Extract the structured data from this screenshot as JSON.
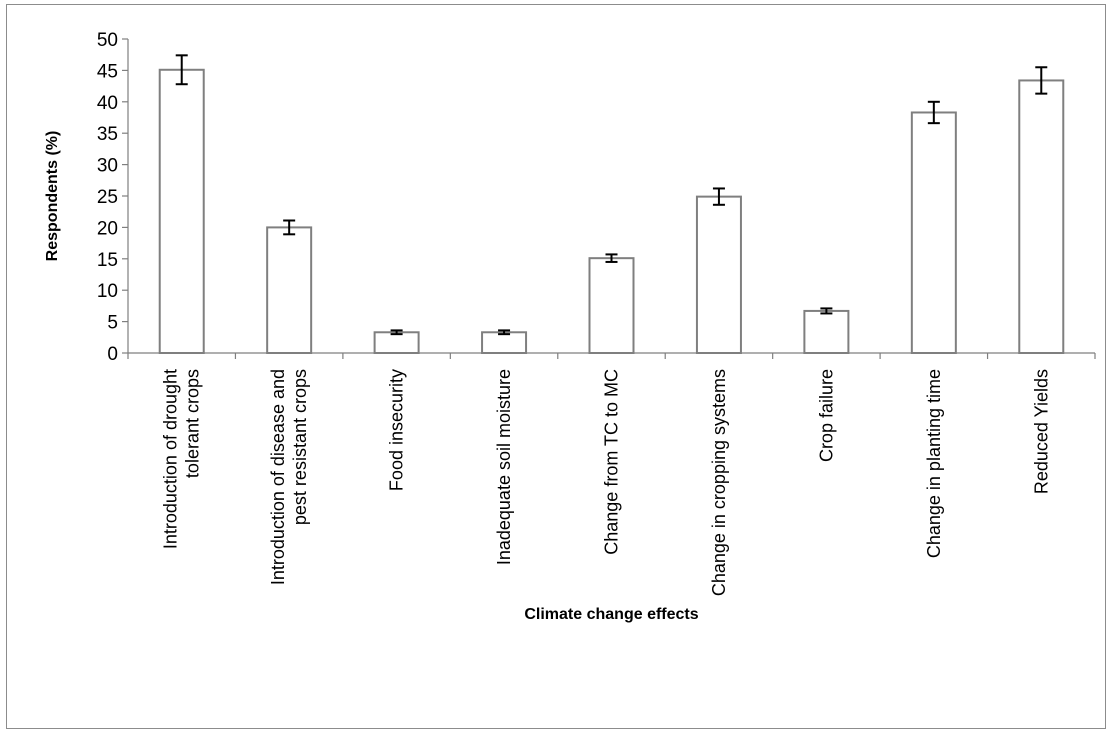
{
  "chart_data": {
    "type": "bar",
    "title": "",
    "xlabel": "Climate change effects",
    "ylabel": "Respondents (%)",
    "ylim": [
      0,
      50
    ],
    "yticks": [
      0,
      5,
      10,
      15,
      20,
      25,
      30,
      35,
      40,
      45,
      50
    ],
    "grid": false,
    "legend": "none",
    "bar_fill": "#ffffff",
    "bar_stroke": "#7f7f7f",
    "categories": [
      [
        "Introduction of drought",
        "tolerant crops"
      ],
      [
        "Introduction of disease and",
        "pest resistant crops"
      ],
      [
        "Food insecurity"
      ],
      [
        "Inadequate soil moisture"
      ],
      [
        "Change from TC to MC"
      ],
      [
        "Change in cropping systems"
      ],
      [
        "Crop failure"
      ],
      [
        "Change in planting time"
      ],
      [
        "Reduced Yields"
      ]
    ],
    "values": [
      45.1,
      20.0,
      3.3,
      3.3,
      15.1,
      24.9,
      6.7,
      38.3,
      43.4
    ],
    "error": [
      2.3,
      1.1,
      0.3,
      0.3,
      0.6,
      1.3,
      0.4,
      1.7,
      2.1
    ]
  }
}
